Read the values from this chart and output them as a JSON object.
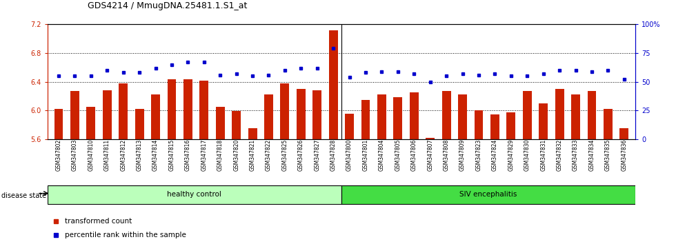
{
  "title": "GDS4214 / MmugDNA.25481.1.S1_at",
  "categories": [
    "GSM347802",
    "GSM347803",
    "GSM347810",
    "GSM347811",
    "GSM347812",
    "GSM347813",
    "GSM347814",
    "GSM347815",
    "GSM347816",
    "GSM347817",
    "GSM347818",
    "GSM347820",
    "GSM347821",
    "GSM347822",
    "GSM347825",
    "GSM347826",
    "GSM347827",
    "GSM347828",
    "GSM347800",
    "GSM347801",
    "GSM347804",
    "GSM347805",
    "GSM347806",
    "GSM347807",
    "GSM347808",
    "GSM347809",
    "GSM347823",
    "GSM347824",
    "GSM347829",
    "GSM347830",
    "GSM347831",
    "GSM347832",
    "GSM347833",
    "GSM347834",
    "GSM347835",
    "GSM347836"
  ],
  "bar_values": [
    6.02,
    6.27,
    6.05,
    6.28,
    6.38,
    6.02,
    6.22,
    6.43,
    6.43,
    6.42,
    6.05,
    5.99,
    5.75,
    6.22,
    6.38,
    6.3,
    6.28,
    7.12,
    5.95,
    6.15,
    6.22,
    6.18,
    6.25,
    5.62,
    6.27,
    6.22,
    6.0,
    5.94,
    5.97,
    6.27,
    6.1,
    6.3,
    6.22,
    6.27,
    6.02,
    5.75
  ],
  "dot_values": [
    55,
    55,
    55,
    60,
    58,
    58,
    62,
    65,
    67,
    67,
    56,
    57,
    55,
    56,
    60,
    62,
    62,
    79,
    54,
    58,
    59,
    59,
    57,
    50,
    55,
    57,
    56,
    57,
    55,
    55,
    57,
    60,
    60,
    59,
    60,
    52
  ],
  "healthy_control_count": 18,
  "ylim_left": [
    5.6,
    7.2
  ],
  "ylim_right": [
    0,
    100
  ],
  "yticks_left": [
    5.6,
    6.0,
    6.4,
    6.8,
    7.2
  ],
  "yticks_right": [
    0,
    25,
    50,
    75,
    100
  ],
  "ytick_labels_right": [
    "0",
    "25",
    "50",
    "75",
    "100%"
  ],
  "bar_color": "#cc2200",
  "dot_color": "#0000cc",
  "healthy_color": "#bbffbb",
  "siv_color": "#44dd44",
  "grid_color": "#000000",
  "background_color": "#ffffff",
  "ybase": 5.6
}
